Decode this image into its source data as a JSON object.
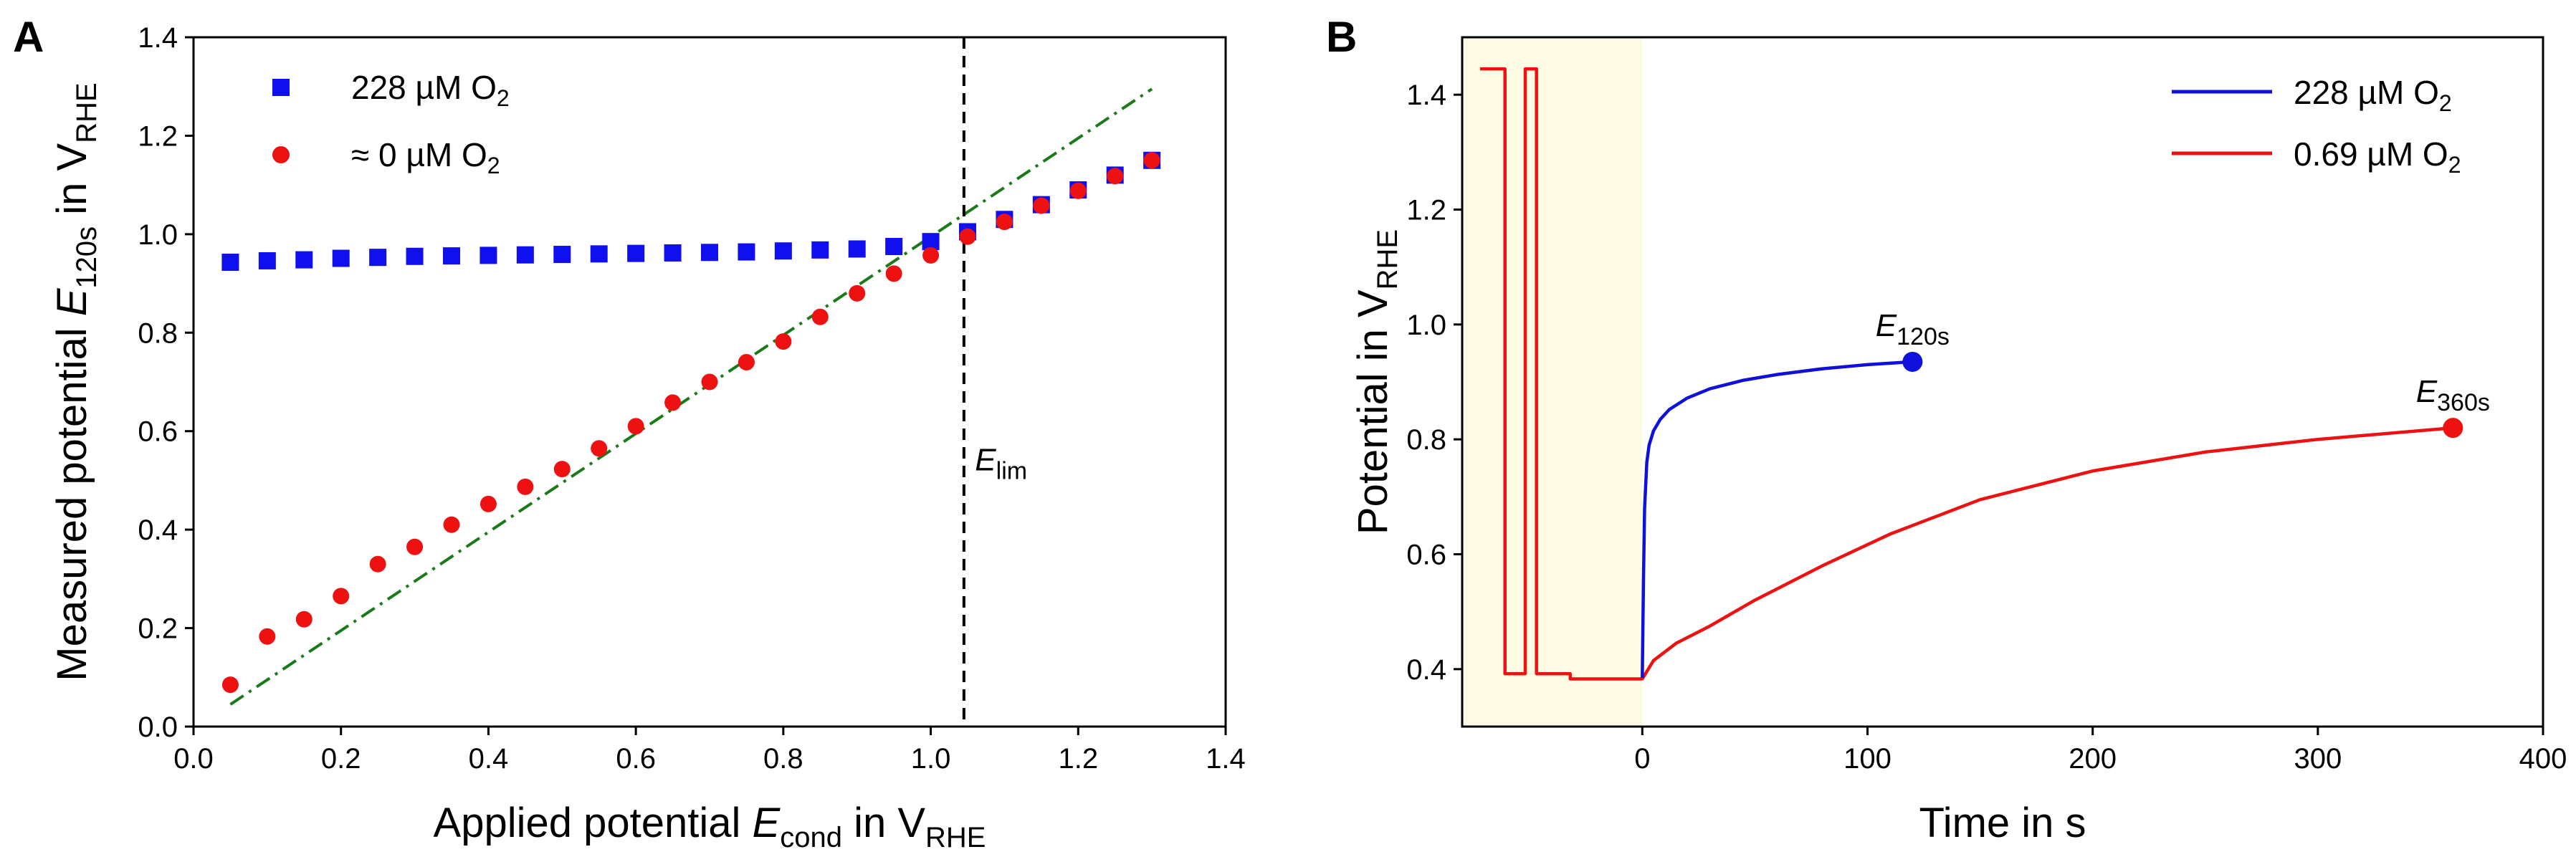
{
  "chart_data": [
    {
      "panel": "A",
      "type": "scatter",
      "xlabel": {
        "main": "Applied potential ",
        "var": "E",
        "varsub": "cond",
        "unit": " in V",
        "unitsub": "RHE"
      },
      "ylabel": {
        "main": "Measured potential ",
        "var": "E",
        "varsub": "120s",
        "unit": " in V",
        "unitsub": "RHE"
      },
      "xlim": [
        0.0,
        1.4
      ],
      "ylim": [
        0.0,
        1.4
      ],
      "xticks": [
        "0.0",
        "0.2",
        "0.4",
        "0.6",
        "0.8",
        "1.0",
        "1.2",
        "1.4"
      ],
      "yticks": [
        "0.0",
        "0.2",
        "0.4",
        "0.6",
        "0.8",
        "1.0",
        "1.2",
        "1.4"
      ],
      "legend_position": "top-left",
      "series": [
        {
          "name": "228 µM O",
          "name_sub": "2",
          "marker": "square",
          "color": "#1010ee",
          "x": [
            0.05,
            0.1,
            0.15,
            0.2,
            0.25,
            0.3,
            0.35,
            0.4,
            0.45,
            0.5,
            0.55,
            0.6,
            0.65,
            0.7,
            0.75,
            0.8,
            0.85,
            0.9,
            0.95,
            1.0,
            1.05,
            1.1,
            1.15,
            1.2,
            1.25,
            1.3
          ],
          "y": [
            0.943,
            0.946,
            0.948,
            0.951,
            0.953,
            0.955,
            0.956,
            0.957,
            0.958,
            0.959,
            0.96,
            0.961,
            0.962,
            0.963,
            0.964,
            0.966,
            0.968,
            0.97,
            0.975,
            0.985,
            1.005,
            1.03,
            1.06,
            1.09,
            1.12,
            1.15
          ]
        },
        {
          "name": "≈ 0 µM O",
          "name_sub": "2",
          "marker": "circle",
          "color": "#ee1111",
          "x": [
            0.05,
            0.1,
            0.15,
            0.2,
            0.25,
            0.3,
            0.35,
            0.4,
            0.45,
            0.5,
            0.55,
            0.6,
            0.65,
            0.7,
            0.75,
            0.8,
            0.85,
            0.9,
            0.95,
            1.0,
            1.05,
            1.1,
            1.15,
            1.2,
            1.25,
            1.3
          ],
          "y": [
            0.085,
            0.183,
            0.218,
            0.265,
            0.33,
            0.365,
            0.41,
            0.452,
            0.487,
            0.523,
            0.565,
            0.61,
            0.658,
            0.7,
            0.74,
            0.782,
            0.832,
            0.88,
            0.92,
            0.957,
            0.995,
            1.025,
            1.058,
            1.088,
            1.118,
            1.15
          ]
        }
      ],
      "reference_line": {
        "style": "dash-dot",
        "color": "#1a7a1a",
        "x": [
          0.05,
          1.3
        ],
        "y": [
          0.045,
          1.295
        ]
      },
      "vertical_line": {
        "style": "dashed",
        "color": "#000000",
        "x": 1.045
      },
      "annotation": {
        "var": "E",
        "sub": "lim",
        "x": 1.06,
        "y": 0.52
      }
    },
    {
      "panel": "B",
      "type": "line",
      "xlabel": {
        "main": "Time in s"
      },
      "ylabel": {
        "main": "Potential in V",
        "unitsub": "RHE"
      },
      "xlim": [
        -80,
        400
      ],
      "ylim": [
        0.3,
        1.5
      ],
      "xticks": [
        "0",
        "100",
        "200",
        "300",
        "400"
      ],
      "xtick_values": [
        0,
        100,
        200,
        300,
        400
      ],
      "yticks": [
        "0.4",
        "0.6",
        "0.8",
        "1.0",
        "1.2",
        "1.4"
      ],
      "ytick_values": [
        0.4,
        0.6,
        0.8,
        1.0,
        1.2,
        1.4
      ],
      "shaded_region": {
        "x": [
          -80,
          0
        ],
        "color": "#fdfbe3"
      },
      "legend_position": "top-right",
      "series": [
        {
          "name": "228 µM O",
          "name_sub": "2",
          "color": "#1010dd",
          "x": [
            0,
            0.5,
            1,
            2,
            3,
            5,
            8,
            12,
            20,
            30,
            45,
            60,
            80,
            100,
            120
          ],
          "y": [
            0.385,
            0.55,
            0.68,
            0.76,
            0.79,
            0.815,
            0.835,
            0.852,
            0.872,
            0.888,
            0.903,
            0.913,
            0.923,
            0.93,
            0.935
          ]
        },
        {
          "name": "0.69 µM O",
          "name_sub": "2",
          "color": "#ee1111",
          "x": [
            -72,
            -61,
            -61,
            -57,
            -57,
            -52,
            -52,
            -47,
            -47,
            -40,
            -40,
            -32,
            -32,
            0,
            5,
            15,
            30,
            50,
            80,
            110,
            150,
            200,
            250,
            300,
            360
          ],
          "y": [
            1.445,
            1.445,
            0.392,
            0.392,
            0.392,
            0.392,
            1.445,
            1.445,
            0.392,
            0.392,
            0.392,
            0.392,
            0.383,
            0.383,
            0.415,
            0.445,
            0.475,
            0.52,
            0.58,
            0.635,
            0.695,
            0.745,
            0.778,
            0.8,
            0.82
          ]
        }
      ],
      "endpoints": [
        {
          "label_var": "E",
          "label_sub": "120s",
          "x": 120,
          "y": 0.935,
          "color": "#1010dd"
        },
        {
          "label_var": "E",
          "label_sub": "360s",
          "x": 360,
          "y": 0.82,
          "color": "#ee1111"
        }
      ]
    }
  ]
}
